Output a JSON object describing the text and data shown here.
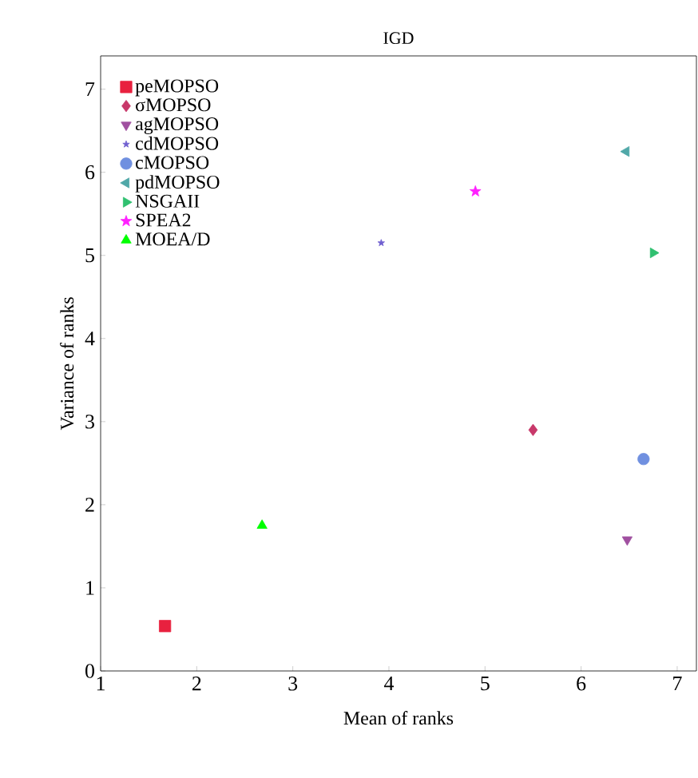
{
  "chart_data": {
    "type": "scatter",
    "title": "IGD",
    "xlabel": "Mean of ranks",
    "ylabel": "Variance of ranks",
    "xlim": [
      1,
      7.2
    ],
    "ylim": [
      0,
      7.4
    ],
    "xticks": [
      1,
      2,
      3,
      4,
      5,
      6,
      7
    ],
    "yticks": [
      0,
      1,
      2,
      3,
      4,
      5,
      6,
      7
    ],
    "grid": false,
    "legend": "top left",
    "series": [
      {
        "name": "peMOPSO",
        "color": "#e8213f",
        "marker": "square",
        "x": [
          1.67
        ],
        "values": [
          0.54
        ]
      },
      {
        "name": "σMOPSO",
        "color": "#c8386a",
        "marker": "diamond",
        "x": [
          5.5
        ],
        "values": [
          2.9
        ]
      },
      {
        "name": "agMOPSO",
        "color": "#a050a0",
        "marker": "triangle-down",
        "x": [
          6.48
        ],
        "values": [
          1.58
        ]
      },
      {
        "name": "cdMOPSO",
        "color": "#7060d0",
        "marker": "star",
        "x": [
          3.92
        ],
        "values": [
          5.15
        ]
      },
      {
        "name": "cMOPSO",
        "color": "#7090e0",
        "marker": "circle",
        "x": [
          6.65
        ],
        "values": [
          2.55
        ]
      },
      {
        "name": "pdMOPSO",
        "color": "#50a8a8",
        "marker": "triangle-left",
        "x": [
          6.47
        ],
        "values": [
          6.25
        ]
      },
      {
        "name": "NSGAII",
        "color": "#30c070",
        "marker": "triangle-right",
        "x": [
          6.75
        ],
        "values": [
          5.03
        ]
      },
      {
        "name": "SPEA2",
        "color": "#ff20ff",
        "marker": "star",
        "x": [
          4.9
        ],
        "values": [
          5.77
        ]
      },
      {
        "name": "MOEA/D",
        "color": "#00ff00",
        "marker": "triangle",
        "x": [
          2.68
        ],
        "values": [
          1.75
        ]
      }
    ]
  }
}
